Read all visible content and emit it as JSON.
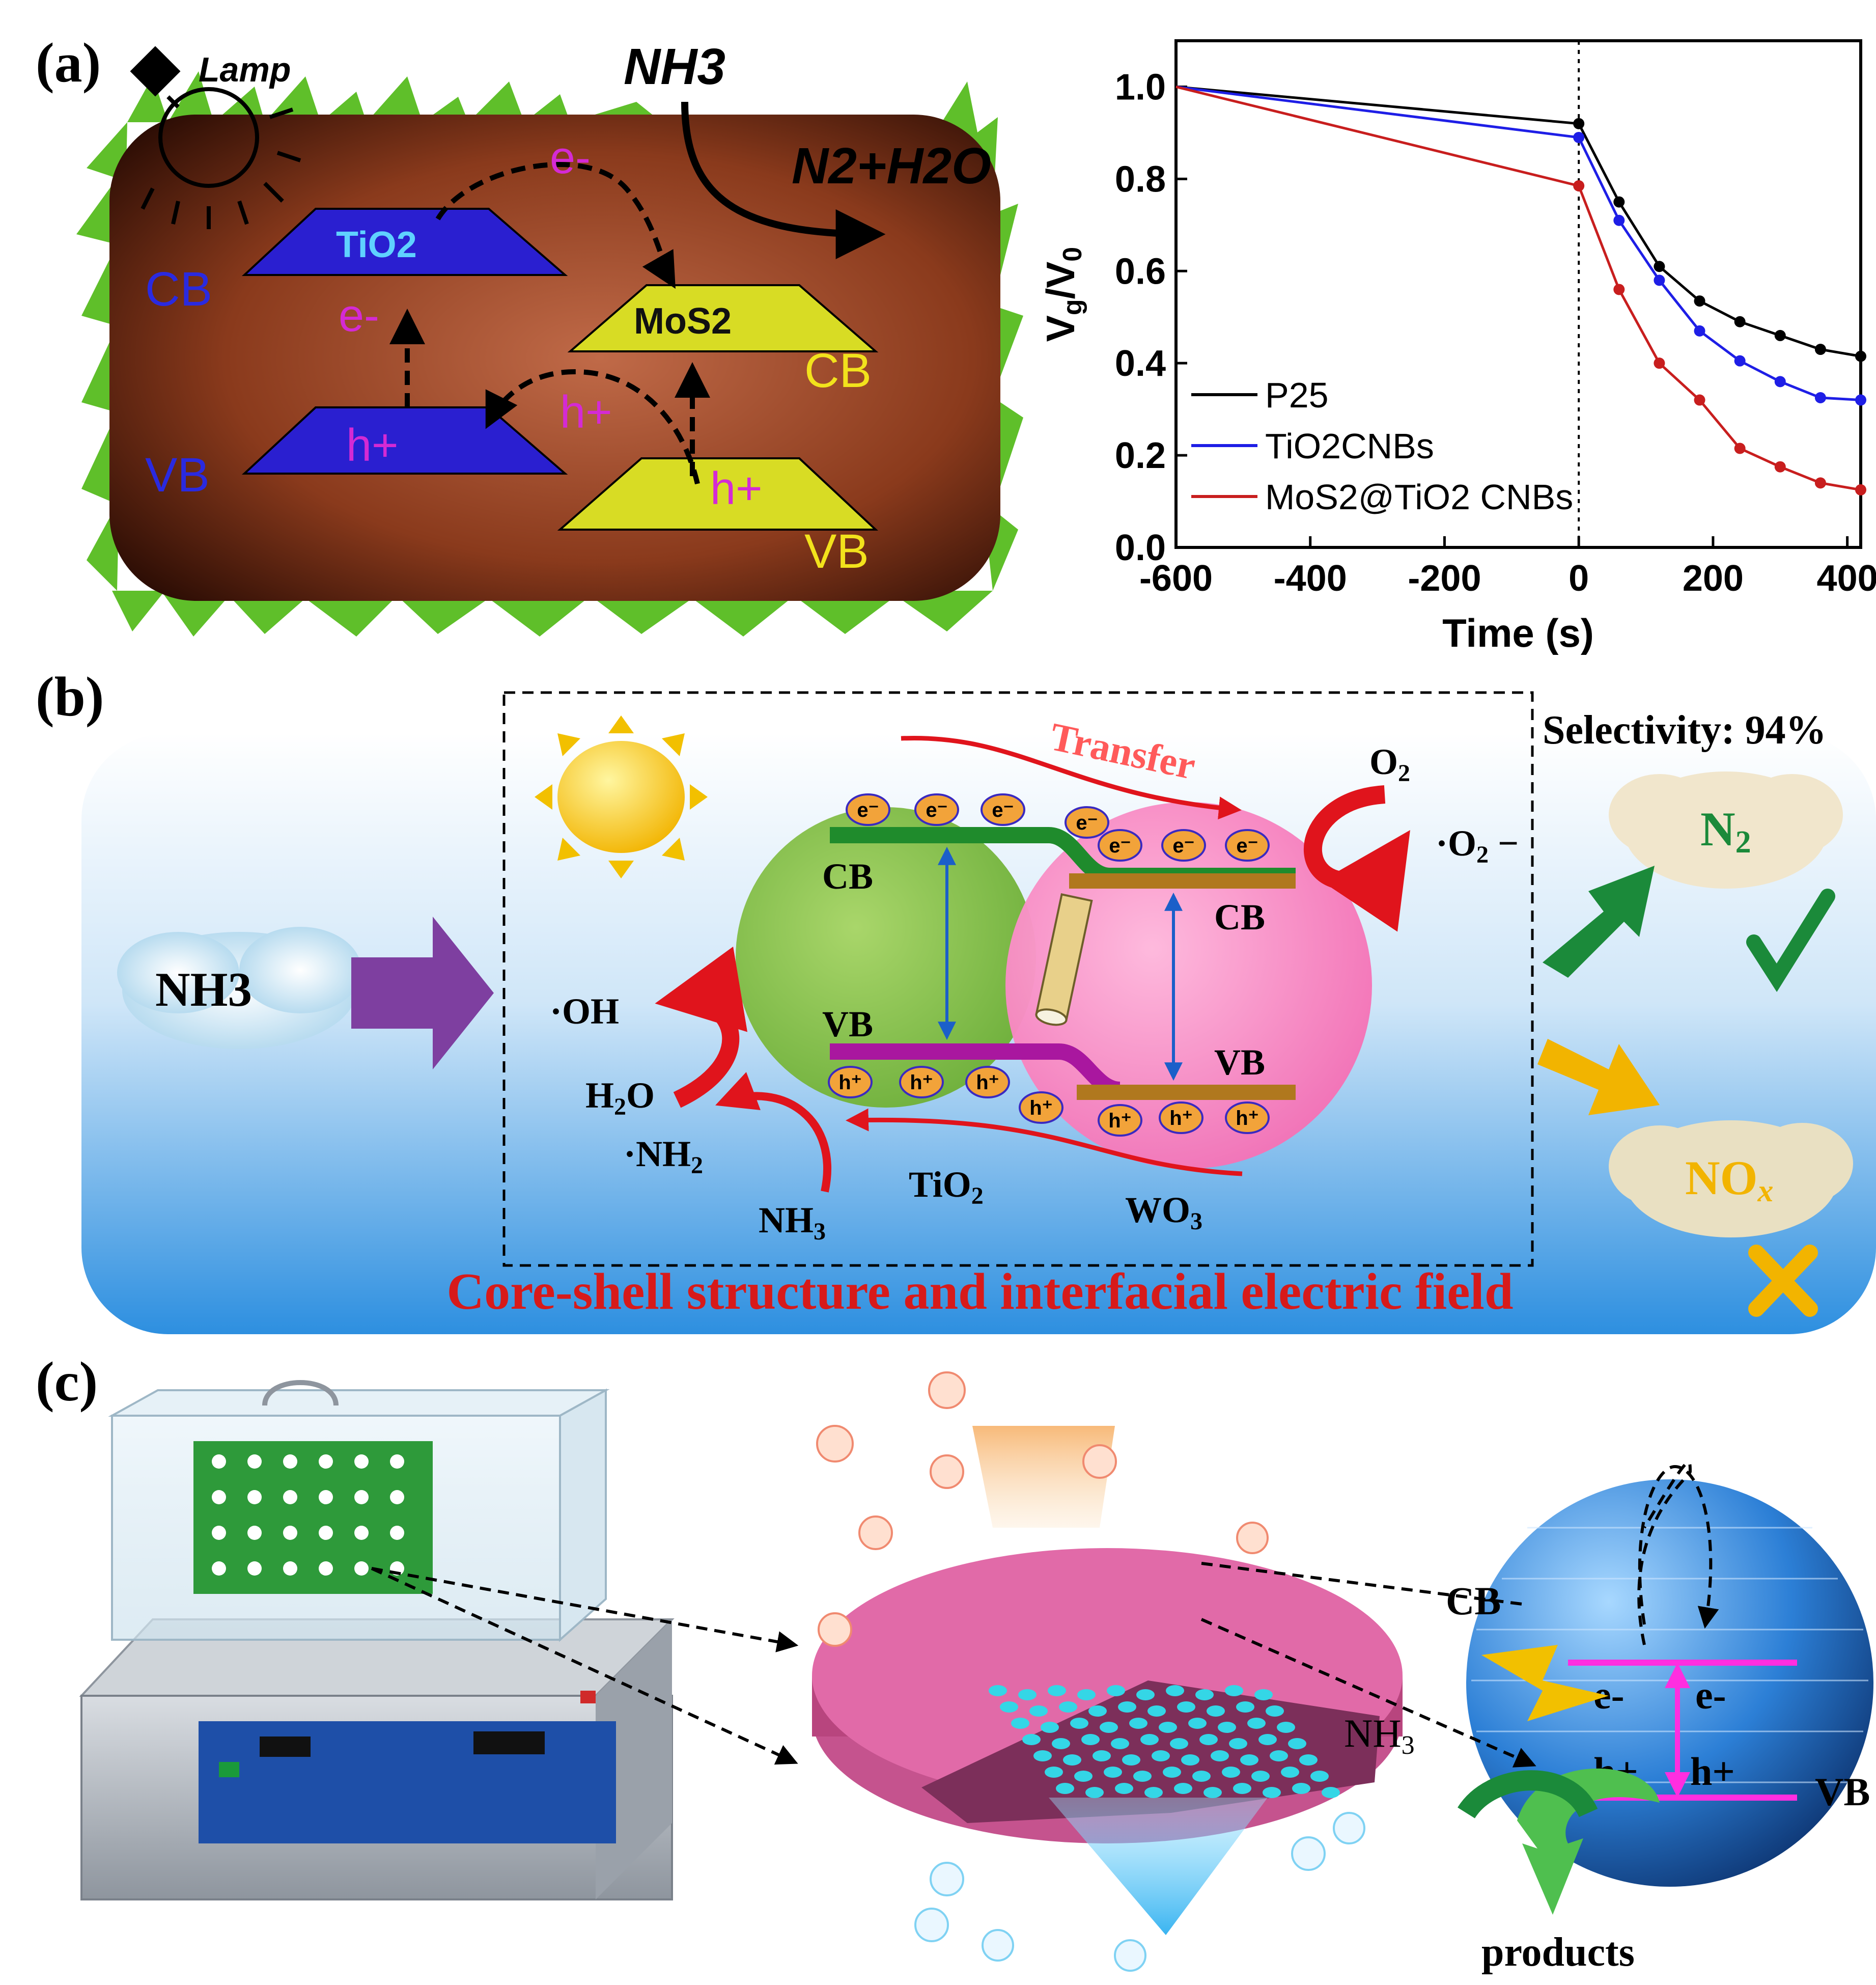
{
  "panel_a": {
    "label": "(a)",
    "schematic": {
      "lamp": "Lamp",
      "nh3": "NH3",
      "products": "N2+H2O",
      "tio2": "TiO2",
      "mos2": "MoS2",
      "cb_left": "CB",
      "vb_left": "VB",
      "cb_right": "CB",
      "vb_right": "VB",
      "electron_top": "e-",
      "electron_left": "e-",
      "hole_left": "h+",
      "hole_mid": "h+",
      "hole_right": "h+"
    },
    "colors": {
      "tio2_plate": "#2a1fd0",
      "mos2_plate": "#d8dc24",
      "body": "#7a2a12",
      "grass": "#5fbf2a"
    }
  },
  "chart_data": {
    "type": "line",
    "xlabel": "Time (s)",
    "ylabel": "Vg/V0",
    "xlim": [
      -600,
      420
    ],
    "ylim": [
      0.0,
      1.1
    ],
    "xticks": [
      "-600",
      "-400",
      "-200",
      "0",
      "200",
      "400"
    ],
    "yticks": [
      "0.0",
      "0.2",
      "0.4",
      "0.6",
      "0.8",
      "1.0"
    ],
    "legend_position": "bottom-left",
    "vline_x": 0,
    "series": [
      {
        "name": "P25",
        "color": "#000000",
        "x": [
          -600,
          0,
          60,
          120,
          180,
          240,
          300,
          360,
          420
        ],
        "y": [
          1.0,
          0.92,
          0.75,
          0.61,
          0.535,
          0.49,
          0.46,
          0.43,
          0.415
        ]
      },
      {
        "name": "TiO2CNBs",
        "color": "#1e1ee6",
        "x": [
          -600,
          0,
          60,
          120,
          180,
          240,
          300,
          360,
          420
        ],
        "y": [
          1.0,
          0.89,
          0.71,
          0.58,
          0.47,
          0.405,
          0.36,
          0.325,
          0.32
        ]
      },
      {
        "name": "MoS2@TiO2 CNBs",
        "color": "#c81e1e",
        "x": [
          -600,
          0,
          60,
          120,
          180,
          240,
          300,
          360,
          420
        ],
        "y": [
          1.0,
          0.785,
          0.56,
          0.4,
          0.32,
          0.215,
          0.175,
          0.14,
          0.125
        ]
      }
    ]
  },
  "panel_b": {
    "label": "(b)",
    "reactant": "NH3",
    "transfer": "Transfer",
    "selectivity": "Selectivity: 94%",
    "o2": "O2",
    "superoxide": "·O2−",
    "cb_left": "CB",
    "vb_left": "VB",
    "cb_right": "CB",
    "vb_right": "VB",
    "oh": "·OH",
    "h2o": "H2O",
    "nh2": "·NH2",
    "nh3_bottom": "NH3",
    "tio2": "TiO2",
    "wo3": "WO3",
    "n2": "N2",
    "nox": "NOx",
    "electron": "e⁻",
    "hole": "h⁺",
    "caption": "Core-shell structure and interfacial electric field"
  },
  "panel_c": {
    "label": "(c)",
    "nh3": "NH3",
    "cb": "CB",
    "vb": "VB",
    "electron": "e-",
    "hole": "h+",
    "products": "products"
  }
}
